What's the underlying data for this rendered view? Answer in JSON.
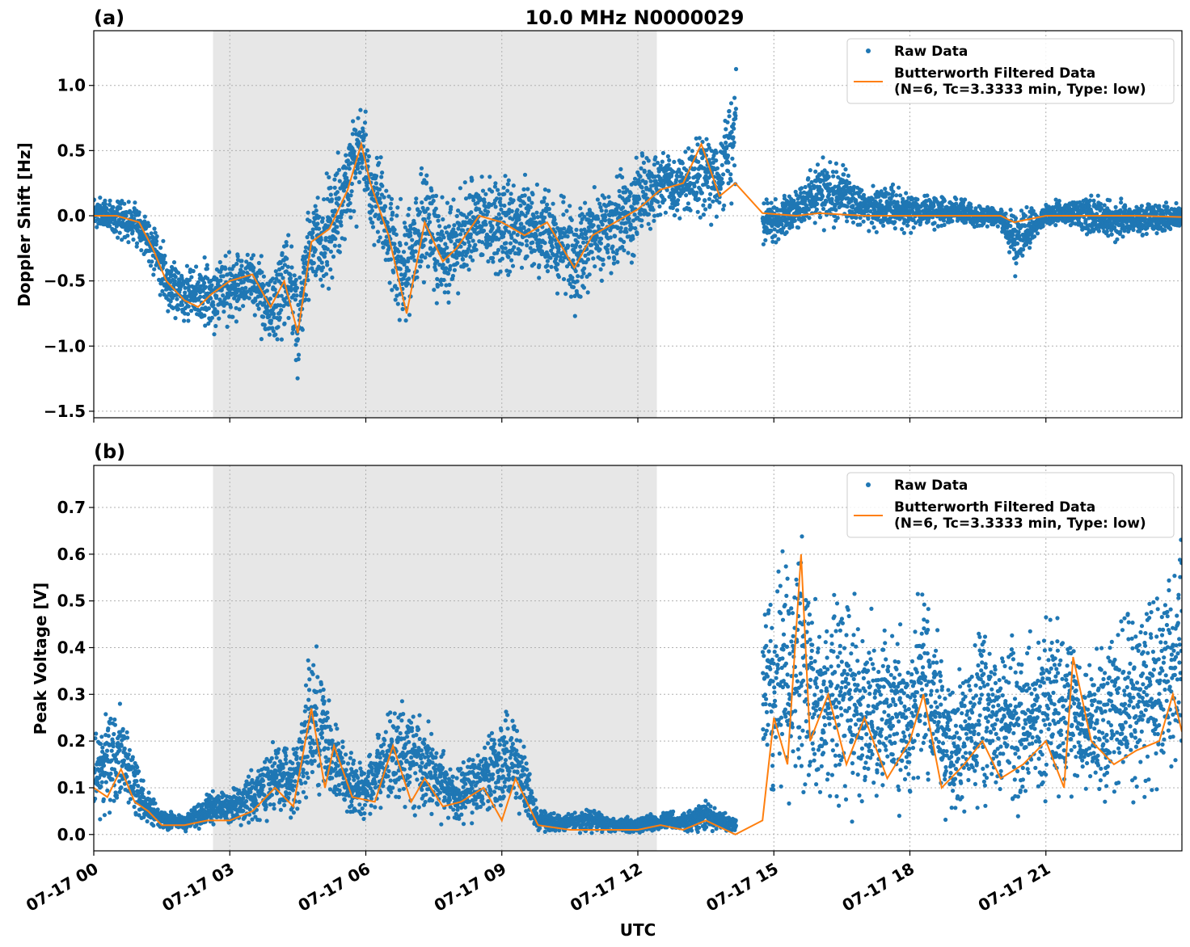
{
  "figure": {
    "xlabel": "UTC",
    "x_tick_labels": [
      "07-17 00",
      "07-17 03",
      "07-17 06",
      "07-17 09",
      "07-17 12",
      "07-17 15",
      "07-17 18",
      "07-17 21"
    ]
  },
  "colors": {
    "raw": "#1f77b4",
    "filtered": "#ff7f0e",
    "shade": "#e7e7e7",
    "grid": "#b0b0b0"
  },
  "chart_data": [
    {
      "type": "scatter+line",
      "panel_label": "(a)",
      "title": "10.0 MHz N0000029",
      "ylabel": "Doppler Shift [Hz]",
      "x_unit": "hours UTC on 07-17",
      "xlim": [
        0,
        24
      ],
      "ylim": [
        -1.55,
        1.42
      ],
      "y_ticks": [
        -1.5,
        -1.0,
        -0.5,
        0.0,
        0.5,
        1.0
      ],
      "y_tick_labels": [
        "−1.5",
        "−1.0",
        "−0.5",
        "0.0",
        "0.5",
        "1.0"
      ],
      "shaded_interval": [
        2.63,
        12.42
      ],
      "grid": true,
      "legend_position": "upper right",
      "legend": [
        "Raw Data",
        "Butterworth Filtered Data\n(N=6, Tc=3.3333 min, Type: low)"
      ],
      "data_gap": [
        14.17,
        14.75
      ],
      "series": [
        {
          "name": "Raw Data",
          "kind": "scatter",
          "envelope": [
            [
              0,
              -0.15,
              0.18
            ],
            [
              0.5,
              -0.2,
              0.18
            ],
            [
              1.0,
              -0.28,
              0.16
            ],
            [
              1.3,
              -0.5,
              0.05
            ],
            [
              1.6,
              -0.78,
              -0.2
            ],
            [
              2.0,
              -0.9,
              -0.3
            ],
            [
              2.6,
              -0.95,
              -0.25
            ],
            [
              3.0,
              -0.88,
              -0.2
            ],
            [
              3.5,
              -0.85,
              -0.15
            ],
            [
              3.9,
              -1.22,
              -0.25
            ],
            [
              4.3,
              -1.0,
              0.0
            ],
            [
              4.5,
              -1.38,
              -0.3
            ],
            [
              4.8,
              -0.75,
              0.3
            ],
            [
              5.2,
              -0.7,
              0.4
            ],
            [
              5.6,
              -0.3,
              0.8
            ],
            [
              5.9,
              0.0,
              1.12
            ],
            [
              6.1,
              -0.2,
              0.6
            ],
            [
              6.4,
              -0.5,
              0.5
            ],
            [
              6.8,
              -1.15,
              0.2
            ],
            [
              7.3,
              -0.6,
              0.5
            ],
            [
              7.7,
              -0.85,
              0.3
            ],
            [
              8.0,
              -0.7,
              0.3
            ],
            [
              8.5,
              -0.5,
              0.45
            ],
            [
              9.0,
              -0.6,
              0.4
            ],
            [
              9.5,
              -0.55,
              0.38
            ],
            [
              10.0,
              -0.65,
              0.4
            ],
            [
              10.6,
              -0.85,
              0.2
            ],
            [
              11.0,
              -0.7,
              0.35
            ],
            [
              11.5,
              -0.5,
              0.4
            ],
            [
              12.0,
              -0.45,
              0.55
            ],
            [
              12.5,
              -0.1,
              0.65
            ],
            [
              13.0,
              -0.1,
              0.55
            ],
            [
              13.4,
              -0.15,
              0.85
            ],
            [
              13.8,
              -0.05,
              0.6
            ],
            [
              14.15,
              0.0,
              1.28
            ],
            [
              14.8,
              -0.3,
              0.18
            ],
            [
              15.5,
              -0.15,
              0.22
            ],
            [
              16.0,
              -0.2,
              0.55
            ],
            [
              16.5,
              -0.15,
              0.45
            ],
            [
              17.0,
              -0.15,
              0.25
            ],
            [
              17.5,
              -0.15,
              0.3
            ],
            [
              18.0,
              -0.15,
              0.2
            ],
            [
              18.5,
              -0.15,
              0.2
            ],
            [
              19.0,
              -0.12,
              0.18
            ],
            [
              19.5,
              -0.12,
              0.12
            ],
            [
              20.0,
              -0.12,
              0.1
            ],
            [
              20.3,
              -0.52,
              0.1
            ],
            [
              21.0,
              -0.1,
              0.12
            ],
            [
              21.5,
              -0.1,
              0.15
            ],
            [
              22.0,
              -0.2,
              0.22
            ],
            [
              22.5,
              -0.25,
              0.18
            ],
            [
              23.0,
              -0.2,
              0.15
            ],
            [
              23.5,
              -0.18,
              0.15
            ],
            [
              24.0,
              -0.15,
              0.12
            ]
          ]
        },
        {
          "name": "Butterworth Filtered Data (N=6, Tc=3.3333 min, Type: low)",
          "kind": "line",
          "points": [
            [
              0,
              0.0
            ],
            [
              0.5,
              0.0
            ],
            [
              1.0,
              -0.05
            ],
            [
              1.3,
              -0.25
            ],
            [
              1.6,
              -0.5
            ],
            [
              2.0,
              -0.65
            ],
            [
              2.3,
              -0.7
            ],
            [
              2.6,
              -0.6
            ],
            [
              3.0,
              -0.5
            ],
            [
              3.5,
              -0.45
            ],
            [
              3.9,
              -0.7
            ],
            [
              4.2,
              -0.5
            ],
            [
              4.5,
              -0.9
            ],
            [
              4.8,
              -0.2
            ],
            [
              5.2,
              -0.1
            ],
            [
              5.6,
              0.2
            ],
            [
              5.9,
              0.55
            ],
            [
              6.1,
              0.25
            ],
            [
              6.5,
              -0.15
            ],
            [
              6.9,
              -0.75
            ],
            [
              7.3,
              -0.05
            ],
            [
              7.7,
              -0.35
            ],
            [
              8.0,
              -0.25
            ],
            [
              8.5,
              0.0
            ],
            [
              9.0,
              -0.05
            ],
            [
              9.5,
              -0.15
            ],
            [
              10.0,
              -0.05
            ],
            [
              10.6,
              -0.4
            ],
            [
              11.0,
              -0.15
            ],
            [
              11.5,
              -0.05
            ],
            [
              12.0,
              0.05
            ],
            [
              12.5,
              0.2
            ],
            [
              13.0,
              0.25
            ],
            [
              13.4,
              0.55
            ],
            [
              13.8,
              0.15
            ],
            [
              14.15,
              0.25
            ],
            [
              14.75,
              0.02
            ],
            [
              15.5,
              0.0
            ],
            [
              16.0,
              0.02
            ],
            [
              17.0,
              0.0
            ],
            [
              18.0,
              0.0
            ],
            [
              19.0,
              0.0
            ],
            [
              20.0,
              0.0
            ],
            [
              20.3,
              -0.05
            ],
            [
              21.0,
              0.0
            ],
            [
              22.0,
              0.0
            ],
            [
              23.0,
              0.0
            ],
            [
              24.0,
              -0.01
            ]
          ]
        }
      ]
    },
    {
      "type": "scatter+line",
      "panel_label": "(b)",
      "title": "",
      "ylabel": "Peak Voltage [V]",
      "x_unit": "hours UTC on 07-17",
      "xlim": [
        0,
        24
      ],
      "ylim": [
        -0.035,
        0.79
      ],
      "y_ticks": [
        0.0,
        0.1,
        0.2,
        0.3,
        0.4,
        0.5,
        0.6,
        0.7
      ],
      "y_tick_labels": [
        "0.0",
        "0.1",
        "0.2",
        "0.3",
        "0.4",
        "0.5",
        "0.6",
        "0.7"
      ],
      "shaded_interval": [
        2.63,
        12.42
      ],
      "grid": true,
      "legend_position": "upper right",
      "legend": [
        "Raw Data",
        "Butterworth Filtered Data\n(N=6, Tc=3.3333 min, Type: low)"
      ],
      "data_gap": [
        14.17,
        14.75
      ],
      "series": [
        {
          "name": "Raw Data",
          "kind": "scatter",
          "envelope": [
            [
              0,
              0.02,
              0.24
            ],
            [
              0.3,
              0.02,
              0.3
            ],
            [
              0.7,
              0.02,
              0.28
            ],
            [
              1.1,
              0.02,
              0.12
            ],
            [
              1.5,
              0.0,
              0.06
            ],
            [
              2.0,
              0.0,
              0.05
            ],
            [
              2.6,
              0.01,
              0.1
            ],
            [
              3.0,
              0.01,
              0.1
            ],
            [
              3.5,
              0.01,
              0.15
            ],
            [
              4.0,
              0.02,
              0.24
            ],
            [
              4.5,
              0.03,
              0.2
            ],
            [
              4.8,
              0.05,
              0.5
            ],
            [
              5.1,
              0.03,
              0.37
            ],
            [
              5.5,
              0.02,
              0.22
            ],
            [
              6.0,
              0.02,
              0.17
            ],
            [
              6.6,
              0.02,
              0.32
            ],
            [
              7.2,
              0.01,
              0.31
            ],
            [
              7.7,
              0.01,
              0.2
            ],
            [
              8.0,
              0.01,
              0.16
            ],
            [
              8.6,
              0.01,
              0.24
            ],
            [
              9.3,
              0.01,
              0.3
            ],
            [
              9.8,
              0.0,
              0.06
            ],
            [
              10.3,
              0.0,
              0.05
            ],
            [
              11.0,
              0.0,
              0.06
            ],
            [
              11.5,
              0.0,
              0.04
            ],
            [
              12.0,
              0.0,
              0.04
            ],
            [
              12.5,
              0.0,
              0.06
            ],
            [
              13.0,
              0.0,
              0.05
            ],
            [
              13.5,
              0.0,
              0.08
            ],
            [
              14.15,
              0.0,
              0.04
            ],
            [
              14.8,
              0.05,
              0.55
            ],
            [
              15.0,
              0.02,
              0.6
            ],
            [
              15.5,
              0.02,
              0.76
            ],
            [
              16.0,
              0.01,
              0.5
            ],
            [
              16.5,
              0.01,
              0.6
            ],
            [
              17.0,
              0.01,
              0.5
            ],
            [
              17.5,
              0.01,
              0.52
            ],
            [
              18.0,
              0.01,
              0.48
            ],
            [
              18.3,
              0.01,
              0.65
            ],
            [
              18.7,
              0.0,
              0.42
            ],
            [
              19.0,
              0.0,
              0.35
            ],
            [
              19.5,
              0.0,
              0.55
            ],
            [
              20.0,
              0.0,
              0.5
            ],
            [
              20.5,
              0.0,
              0.45
            ],
            [
              21.0,
              0.0,
              0.55
            ],
            [
              21.5,
              0.05,
              0.5
            ],
            [
              22.0,
              0.01,
              0.4
            ],
            [
              22.5,
              0.01,
              0.5
            ],
            [
              23.0,
              0.01,
              0.55
            ],
            [
              23.5,
              0.01,
              0.6
            ],
            [
              24.0,
              0.02,
              0.72
            ]
          ]
        },
        {
          "name": "Butterworth Filtered Data (N=6, Tc=3.3333 min, Type: low)",
          "kind": "line",
          "points": [
            [
              0,
              0.1
            ],
            [
              0.3,
              0.08
            ],
            [
              0.6,
              0.14
            ],
            [
              0.9,
              0.07
            ],
            [
              1.2,
              0.05
            ],
            [
              1.5,
              0.02
            ],
            [
              2.0,
              0.02
            ],
            [
              2.5,
              0.03
            ],
            [
              3.0,
              0.03
            ],
            [
              3.5,
              0.05
            ],
            [
              4.0,
              0.1
            ],
            [
              4.4,
              0.06
            ],
            [
              4.8,
              0.27
            ],
            [
              5.1,
              0.1
            ],
            [
              5.3,
              0.19
            ],
            [
              5.7,
              0.08
            ],
            [
              6.2,
              0.07
            ],
            [
              6.6,
              0.19
            ],
            [
              7.0,
              0.07
            ],
            [
              7.3,
              0.12
            ],
            [
              7.7,
              0.06
            ],
            [
              8.1,
              0.07
            ],
            [
              8.6,
              0.1
            ],
            [
              9.0,
              0.03
            ],
            [
              9.3,
              0.12
            ],
            [
              9.8,
              0.02
            ],
            [
              10.5,
              0.01
            ],
            [
              11.0,
              0.01
            ],
            [
              11.5,
              0.01
            ],
            [
              12.0,
              0.01
            ],
            [
              12.5,
              0.02
            ],
            [
              13.0,
              0.01
            ],
            [
              13.5,
              0.03
            ],
            [
              14.15,
              0.0
            ],
            [
              14.75,
              0.03
            ],
            [
              15.0,
              0.25
            ],
            [
              15.3,
              0.15
            ],
            [
              15.6,
              0.6
            ],
            [
              15.8,
              0.2
            ],
            [
              16.2,
              0.3
            ],
            [
              16.6,
              0.15
            ],
            [
              17.0,
              0.25
            ],
            [
              17.5,
              0.12
            ],
            [
              18.0,
              0.2
            ],
            [
              18.3,
              0.3
            ],
            [
              18.7,
              0.1
            ],
            [
              19.2,
              0.15
            ],
            [
              19.6,
              0.2
            ],
            [
              20.0,
              0.12
            ],
            [
              20.5,
              0.15
            ],
            [
              21.0,
              0.2
            ],
            [
              21.4,
              0.1
            ],
            [
              21.6,
              0.38
            ],
            [
              22.0,
              0.2
            ],
            [
              22.5,
              0.15
            ],
            [
              23.0,
              0.18
            ],
            [
              23.5,
              0.2
            ],
            [
              23.8,
              0.3
            ],
            [
              24.0,
              0.22
            ]
          ]
        }
      ]
    }
  ]
}
